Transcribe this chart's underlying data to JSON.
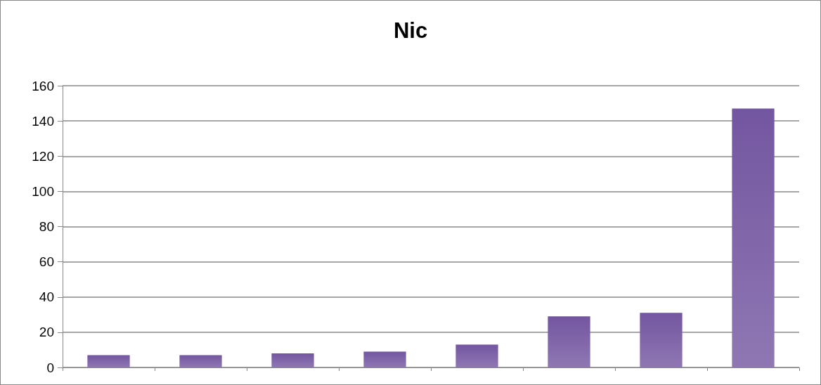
{
  "chart_data": {
    "type": "bar",
    "title": "Nic",
    "categories": [
      null,
      null,
      null,
      null,
      null,
      null,
      null,
      null
    ],
    "values": [
      7,
      7,
      8,
      9,
      13,
      29,
      31,
      147
    ],
    "color": "#7356a0",
    "ylim": [
      0,
      160
    ],
    "yticks": [
      0,
      20,
      40,
      60,
      80,
      100,
      120,
      140,
      160
    ],
    "grid": "y"
  }
}
